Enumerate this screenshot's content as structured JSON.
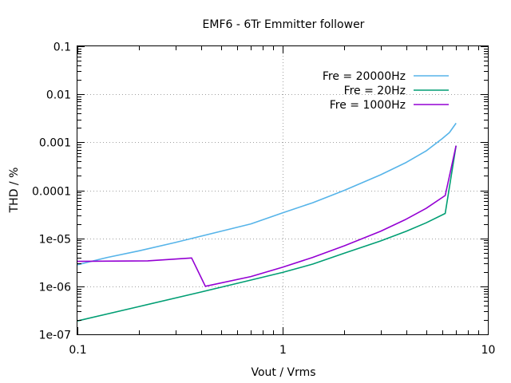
{
  "chart_data": {
    "type": "line",
    "title": "EMF6 - 6Tr Emmitter follower",
    "xlabel": "Vout / Vrms",
    "ylabel": "THD / %",
    "xscale": "log",
    "yscale": "log",
    "xlim": [
      0.1,
      10
    ],
    "ylim": [
      1e-07,
      0.1
    ],
    "xticks": [
      {
        "value": 0.1,
        "label": "0.1"
      },
      {
        "value": 1,
        "label": "1"
      },
      {
        "value": 10,
        "label": "10"
      }
    ],
    "yticks": [
      {
        "value": 1e-07,
        "label": "1e-07"
      },
      {
        "value": 1e-06,
        "label": "1e-06"
      },
      {
        "value": 1e-05,
        "label": "1e-05"
      },
      {
        "value": 0.0001,
        "label": "0.0001"
      },
      {
        "value": 0.001,
        "label": "0.001"
      },
      {
        "value": 0.01,
        "label": "0.01"
      },
      {
        "value": 0.1,
        "label": "0.1"
      }
    ],
    "grid": true,
    "legend_position": "top-right",
    "series": [
      {
        "name": "Fre = 20000Hz",
        "color": "#56b4e9",
        "x": [
          0.1,
          0.14,
          0.2,
          0.3,
          0.5,
          0.7,
          1.0,
          1.4,
          2.0,
          3.0,
          4.0,
          5.0,
          6.0,
          6.5,
          7.0
        ],
        "y": [
          2.8e-06,
          4e-06,
          5.5e-06,
          8.2e-06,
          1.4e-05,
          2e-05,
          3.4e-05,
          5.5e-05,
          0.0001,
          0.00021,
          0.00038,
          0.00066,
          0.0012,
          0.0016,
          0.0025
        ]
      },
      {
        "name": "Fre = 20Hz",
        "color": "#009e73",
        "x": [
          0.1,
          0.2,
          0.4,
          0.7,
          1.0,
          1.4,
          2.0,
          3.0,
          4.0,
          5.0,
          6.2,
          7.0
        ],
        "y": [
          1.9e-07,
          3.8e-07,
          7.6e-07,
          1.35e-06,
          1.95e-06,
          2.9e-06,
          4.9e-06,
          8.8e-06,
          1.4e-05,
          2.1e-05,
          3.3e-05,
          0.00085
        ]
      },
      {
        "name": "Fre = 1000Hz",
        "color": "#9400d3",
        "x": [
          0.1,
          0.22,
          0.36,
          0.42,
          0.7,
          1.0,
          1.4,
          2.0,
          3.0,
          4.0,
          5.0,
          6.2,
          7.0
        ],
        "y": [
          3.3e-06,
          3.4e-06,
          3.9e-06,
          1e-06,
          1.6e-06,
          2.5e-06,
          4e-06,
          7e-06,
          1.4e-05,
          2.5e-05,
          4.2e-05,
          7.8e-05,
          0.00085
        ]
      }
    ]
  }
}
